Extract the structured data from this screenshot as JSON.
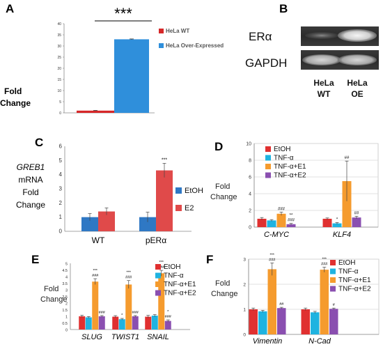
{
  "panels": {
    "A": {
      "letter": "A",
      "ylabel_1": "Fold",
      "ylabel_2": "Change",
      "yticks": [
        "0",
        "5",
        "10",
        "15",
        "20",
        "25",
        "30",
        "35",
        "40"
      ],
      "sig": "***"
    },
    "B": {
      "letter": "B",
      "band_1": "ERα",
      "band_2": "GAPDH",
      "lane_1a": "HeLa",
      "lane_1b": "WT",
      "lane_2a": "HeLa",
      "lane_2b": "OE"
    },
    "C": {
      "letter": "C",
      "ylabel_1": "GREB1",
      "ylabel_2": "mRNA",
      "ylabel_3": "Fold",
      "ylabel_4": "Change",
      "yticks": [
        "0",
        "1",
        "2",
        "3",
        "4",
        "5",
        "6"
      ]
    },
    "D": {
      "letter": "D",
      "ylabel_1": "Fold",
      "ylabel_2": "Change",
      "yticks": [
        "0",
        "2",
        "4",
        "6",
        "8",
        "10"
      ]
    },
    "E": {
      "letter": "E",
      "ylabel_1": "Fold",
      "ylabel_2": "Change",
      "yticks": [
        "0",
        "0.5",
        "1",
        "1.5",
        "2",
        "2.5",
        "3",
        "3.5",
        "4",
        "4.5",
        "5"
      ]
    },
    "F": {
      "letter": "F",
      "ylabel_1": "Fold",
      "ylabel_2": "Change",
      "yticks": [
        "0",
        "1",
        "2",
        "3"
      ]
    }
  },
  "chart_data": [
    {
      "panel": "A",
      "type": "bar",
      "ylim": [
        0,
        40
      ],
      "legend": "top-right",
      "series": [
        {
          "name": "HeLa WT",
          "color": "#d62728",
          "values": [
            1
          ],
          "err": [
            0.1
          ]
        },
        {
          "name": "HeLa Over-Expressed",
          "color": "#2f8fdb",
          "values": [
            33
          ],
          "err": [
            0.15
          ]
        }
      ]
    },
    {
      "panel": "C",
      "type": "bar",
      "ylim": [
        0,
        6
      ],
      "categories": [
        "WT",
        "pERα"
      ],
      "legend": "right",
      "series": [
        {
          "name": "EtOH",
          "color": "#2f78c4",
          "values": [
            1.0,
            1.0
          ],
          "err": [
            0.25,
            0.35
          ],
          "sig": [
            "",
            ""
          ]
        },
        {
          "name": "E2",
          "color": "#e04a4a",
          "values": [
            1.4,
            4.3
          ],
          "err": [
            0.25,
            0.5
          ],
          "sig": [
            "",
            "***"
          ]
        }
      ]
    },
    {
      "panel": "D",
      "type": "bar",
      "ylim": [
        0,
        10
      ],
      "categories": [
        "C-MYC",
        "KLF4"
      ],
      "legend": "top-left",
      "series": [
        {
          "name": "EtOH",
          "color": "#e03030",
          "values": [
            1.0,
            1.0
          ],
          "err": [
            0.15,
            0.1
          ],
          "sig": [
            "",
            ""
          ]
        },
        {
          "name": "TNF-α",
          "color": "#1fb3e0",
          "values": [
            0.8,
            0.45
          ],
          "err": [
            0.1,
            0.1
          ],
          "sig": [
            "",
            "*"
          ]
        },
        {
          "name": "TNF-α+E1",
          "color": "#f59b2e",
          "values": [
            1.6,
            5.5
          ],
          "err": [
            0.2,
            2.4
          ],
          "sig": [
            "###",
            "##"
          ]
        },
        {
          "name": "TNF-α+E2",
          "color": "#8a4fb0",
          "values": [
            0.35,
            1.15
          ],
          "err": [
            0.1,
            0.15
          ],
          "sig": [
            "**\n###",
            "##"
          ]
        }
      ]
    },
    {
      "panel": "E",
      "type": "bar",
      "ylim": [
        0,
        5
      ],
      "categories": [
        "SLUG",
        "TWIST1",
        "SNAIL"
      ],
      "legend": "top-right",
      "series": [
        {
          "name": "EtOH",
          "color": "#e03030",
          "values": [
            1.0,
            0.97,
            0.97
          ],
          "err": [
            0.08,
            0.08,
            0.1
          ],
          "sig": [
            "",
            "",
            ""
          ]
        },
        {
          "name": "TNF-α",
          "color": "#1fb3e0",
          "values": [
            0.92,
            0.78,
            1.05
          ],
          "err": [
            0.06,
            0.06,
            0.08
          ],
          "sig": [
            "",
            "*",
            ""
          ]
        },
        {
          "name": "TNF-α+E1",
          "color": "#f59b2e",
          "values": [
            3.62,
            3.4,
            4.25
          ],
          "err": [
            0.22,
            0.3,
            0.22
          ],
          "sig": [
            "***\n###",
            "***\n###",
            "***\n###"
          ]
        },
        {
          "name": "TNF-α+E2",
          "color": "#8a4fb0",
          "values": [
            1.0,
            1.0,
            0.65
          ],
          "err": [
            0.06,
            0.06,
            0.08
          ],
          "sig": [
            "###",
            "###",
            "*\n###"
          ]
        }
      ]
    },
    {
      "panel": "F",
      "type": "bar",
      "ylim": [
        0,
        3
      ],
      "categories": [
        "Vimentin",
        "N-Cad"
      ],
      "legend": "top-right",
      "series": [
        {
          "name": "EtOH",
          "color": "#e03030",
          "values": [
            1.0,
            1.0
          ],
          "err": [
            0.05,
            0.05
          ],
          "sig": [
            "",
            ""
          ]
        },
        {
          "name": "TNF-α",
          "color": "#1fb3e0",
          "values": [
            0.92,
            0.88
          ],
          "err": [
            0.04,
            0.04
          ],
          "sig": [
            "",
            ""
          ]
        },
        {
          "name": "TNF-α+E1",
          "color": "#f59b2e",
          "values": [
            2.6,
            2.58
          ],
          "err": [
            0.25,
            0.1
          ],
          "sig": [
            "***\n###",
            "***\n###"
          ]
        },
        {
          "name": "TNF-α+E2",
          "color": "#8a4fb0",
          "values": [
            1.05,
            1.02
          ],
          "err": [
            0.03,
            0.03
          ],
          "sig": [
            "##",
            "#"
          ]
        }
      ]
    }
  ]
}
